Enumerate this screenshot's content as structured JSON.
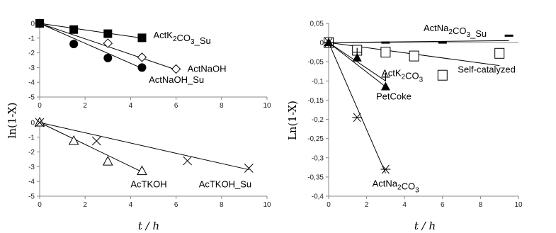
{
  "chart_data": [
    {
      "type": "scatter",
      "panel": "top-left",
      "ylabel": "ln(1-X)",
      "xlabel": "",
      "xlim": [
        0,
        10
      ],
      "ylim": [
        -5,
        0
      ],
      "xticks": [
        0,
        2,
        4,
        6,
        8,
        10
      ],
      "yticks": [
        0,
        -1,
        -2,
        -3,
        -4,
        -5
      ],
      "series": [
        {
          "name": "ActK2CO3_Su",
          "label_html": "ActK<tspan baseline-shift='sub' font-size='10'>2</tspan>CO<tspan baseline-shift='sub' font-size='10'>3</tspan>_Su",
          "marker": "square",
          "x": [
            0,
            1.5,
            3,
            4.5
          ],
          "y": [
            0,
            -0.42,
            -0.7,
            -0.98
          ],
          "fit": [
            [
              0,
              0
            ],
            [
              4.5,
              -1.0
            ]
          ]
        },
        {
          "name": "ActNaOH",
          "marker": "diamond",
          "x": [
            0,
            3,
            4.5,
            6
          ],
          "y": [
            0,
            -1.35,
            -2.3,
            -3.1
          ],
          "fit": [
            [
              0,
              0
            ],
            [
              6,
              -3.15
            ]
          ]
        },
        {
          "name": "ActNaOH_Su",
          "marker": "circle",
          "x": [
            0,
            1.5,
            3,
            4.5
          ],
          "y": [
            0,
            -1.4,
            -2.35,
            -3.0
          ],
          "fit": [
            [
              0,
              0
            ],
            [
              4.5,
              -3.05
            ]
          ]
        }
      ],
      "annotations": [
        {
          "text": "ActK2CO3_Su",
          "series": 0,
          "at": [
            5.0,
            -1.0
          ]
        },
        {
          "text": "ActNaOH",
          "series": 1,
          "at": [
            6.5,
            -3.3
          ]
        },
        {
          "text": "ActNaOH_Su",
          "series": 2,
          "at": [
            4.8,
            -4.05
          ]
        }
      ]
    },
    {
      "type": "scatter",
      "panel": "bottom-left",
      "ylabel": "",
      "xlabel": "t / h",
      "xlim": [
        0,
        10
      ],
      "ylim": [
        -5,
        0
      ],
      "xticks": [
        0,
        2,
        4,
        6,
        8,
        10
      ],
      "yticks": [
        0,
        -1,
        -2,
        -3,
        -4,
        -5
      ],
      "series": [
        {
          "name": "AcTKOH",
          "marker": "triangle",
          "x": [
            0,
            1.5,
            3,
            4.5
          ],
          "y": [
            0,
            -1.25,
            -2.65,
            -3.3
          ],
          "fit": [
            [
              0,
              0
            ],
            [
              4.5,
              -3.35
            ]
          ]
        },
        {
          "name": "AcTKOH_Su",
          "marker": "x",
          "x": [
            0,
            2.5,
            6.5,
            9.2
          ],
          "y": [
            0,
            -1.25,
            -2.6,
            -3.1
          ],
          "fit": [
            [
              0,
              0
            ],
            [
              9.2,
              -3.2
            ]
          ]
        }
      ],
      "annotations": [
        {
          "text": "AcTKOH",
          "series": 0,
          "at": [
            4.0,
            -4.4
          ]
        },
        {
          "text": "AcTKOH_Su",
          "series": 1,
          "at": [
            7.0,
            -4.4
          ]
        }
      ]
    },
    {
      "type": "scatter",
      "panel": "right",
      "ylabel": "Ln(1-X)",
      "xlabel": "t / h",
      "xlim": [
        0,
        10
      ],
      "ylim": [
        -0.4,
        0.05
      ],
      "xticks": [
        0,
        2,
        4,
        6,
        8,
        10
      ],
      "yticks": [
        0.05,
        0,
        -0.05,
        -0.1,
        -0.15,
        -0.2,
        -0.25,
        -0.3,
        -0.35,
        -0.4
      ],
      "ytick_labels": [
        "0,05",
        "0",
        "-0,05",
        "-0,1",
        "-0,15",
        "-0,2",
        "-0,25",
        "-0,3",
        "-0,35",
        "-0,4"
      ],
      "series": [
        {
          "name": "ActNa2CO3_Su",
          "marker": "dash",
          "x": [
            0,
            3,
            6,
            9.5
          ],
          "y": [
            0,
            0.0,
            0.0,
            0.018
          ],
          "fit": [
            [
              0,
              0
            ],
            [
              9.5,
              0.005
            ]
          ]
        },
        {
          "name": "Self-catalyzed",
          "marker": "open-square",
          "x": [
            0,
            1.5,
            3,
            4.5,
            6,
            9
          ],
          "y": [
            0,
            -0.02,
            -0.025,
            -0.035,
            -0.085,
            -0.028
          ],
          "fit": [
            [
              0,
              0
            ],
            [
              9,
              -0.06
            ]
          ]
        },
        {
          "name": "ActK2CO3",
          "marker": "plus",
          "x": [
            0,
            1.5,
            3
          ],
          "y": [
            0,
            -0.025,
            -0.09
          ],
          "fit": [
            [
              0,
              0
            ],
            [
              3,
              -0.1
            ]
          ]
        },
        {
          "name": "PetCoke",
          "marker": "triangle-filled",
          "x": [
            0,
            1.5,
            3
          ],
          "y": [
            0,
            -0.04,
            -0.115
          ],
          "fit": [
            [
              0,
              0
            ],
            [
              3,
              -0.115
            ]
          ]
        },
        {
          "name": "ActNa2CO3",
          "marker": "asterisk",
          "x": [
            0,
            1.5,
            3
          ],
          "y": [
            0,
            -0.195,
            -0.33
          ],
          "fit": [
            [
              0,
              0
            ],
            [
              3,
              -0.34
            ]
          ]
        }
      ],
      "annotations": [
        {
          "text": "ActNa2CO3_Su",
          "series": 0,
          "at": [
            5.0,
            0.03
          ]
        },
        {
          "text": "Self-catalyzed",
          "series": 1,
          "at": [
            6.8,
            -0.078
          ]
        },
        {
          "text": "ActK2CO3",
          "series": 2,
          "at": [
            2.8,
            -0.087
          ]
        },
        {
          "text": "PetCoke",
          "series": 3,
          "at": [
            2.5,
            -0.148
          ]
        },
        {
          "text": "ActNa2CO3",
          "series": 4,
          "at": [
            2.3,
            -0.375
          ]
        }
      ]
    }
  ]
}
